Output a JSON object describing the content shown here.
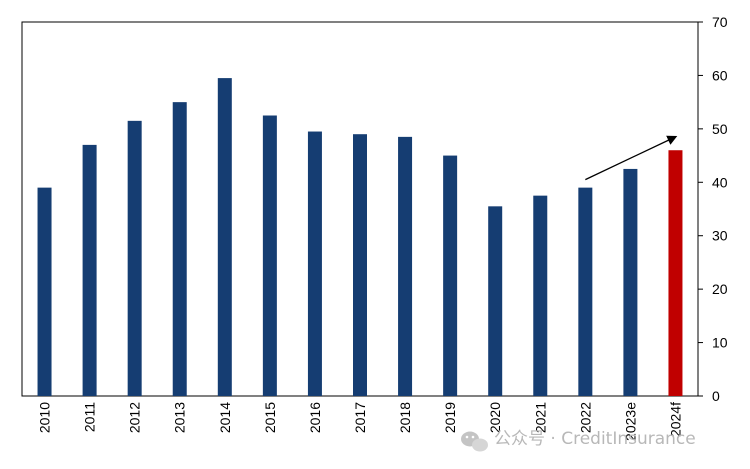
{
  "chart_data": {
    "type": "bar",
    "title": "",
    "xlabel": "",
    "ylabel": "",
    "categories": [
      "2010",
      "2011",
      "2012",
      "2013",
      "2014",
      "2015",
      "2016",
      "2017",
      "2018",
      "2019",
      "2020",
      "2021",
      "2022",
      "2023e",
      "2024f"
    ],
    "values": [
      39,
      47,
      51.5,
      55,
      59.5,
      52.5,
      49.5,
      49,
      48.5,
      45,
      35.5,
      37.5,
      39,
      42.5,
      46
    ],
    "ylim": [
      0,
      70
    ],
    "yticks": [
      0,
      10,
      20,
      30,
      40,
      50,
      60,
      70
    ],
    "yaxis_side": "right",
    "grid": false,
    "colors": {
      "bar": "#153D72",
      "highlight": "#C00000",
      "axis": "#000000"
    },
    "highlight_category": "2024f",
    "annotation": {
      "type": "arrow",
      "from_category": "2022",
      "from_value": 40.5,
      "to_category": "2024f",
      "to_value": 48.5
    }
  },
  "watermark": {
    "text": "公众号 · CreditInsurance",
    "icon": "wechat-icon"
  }
}
